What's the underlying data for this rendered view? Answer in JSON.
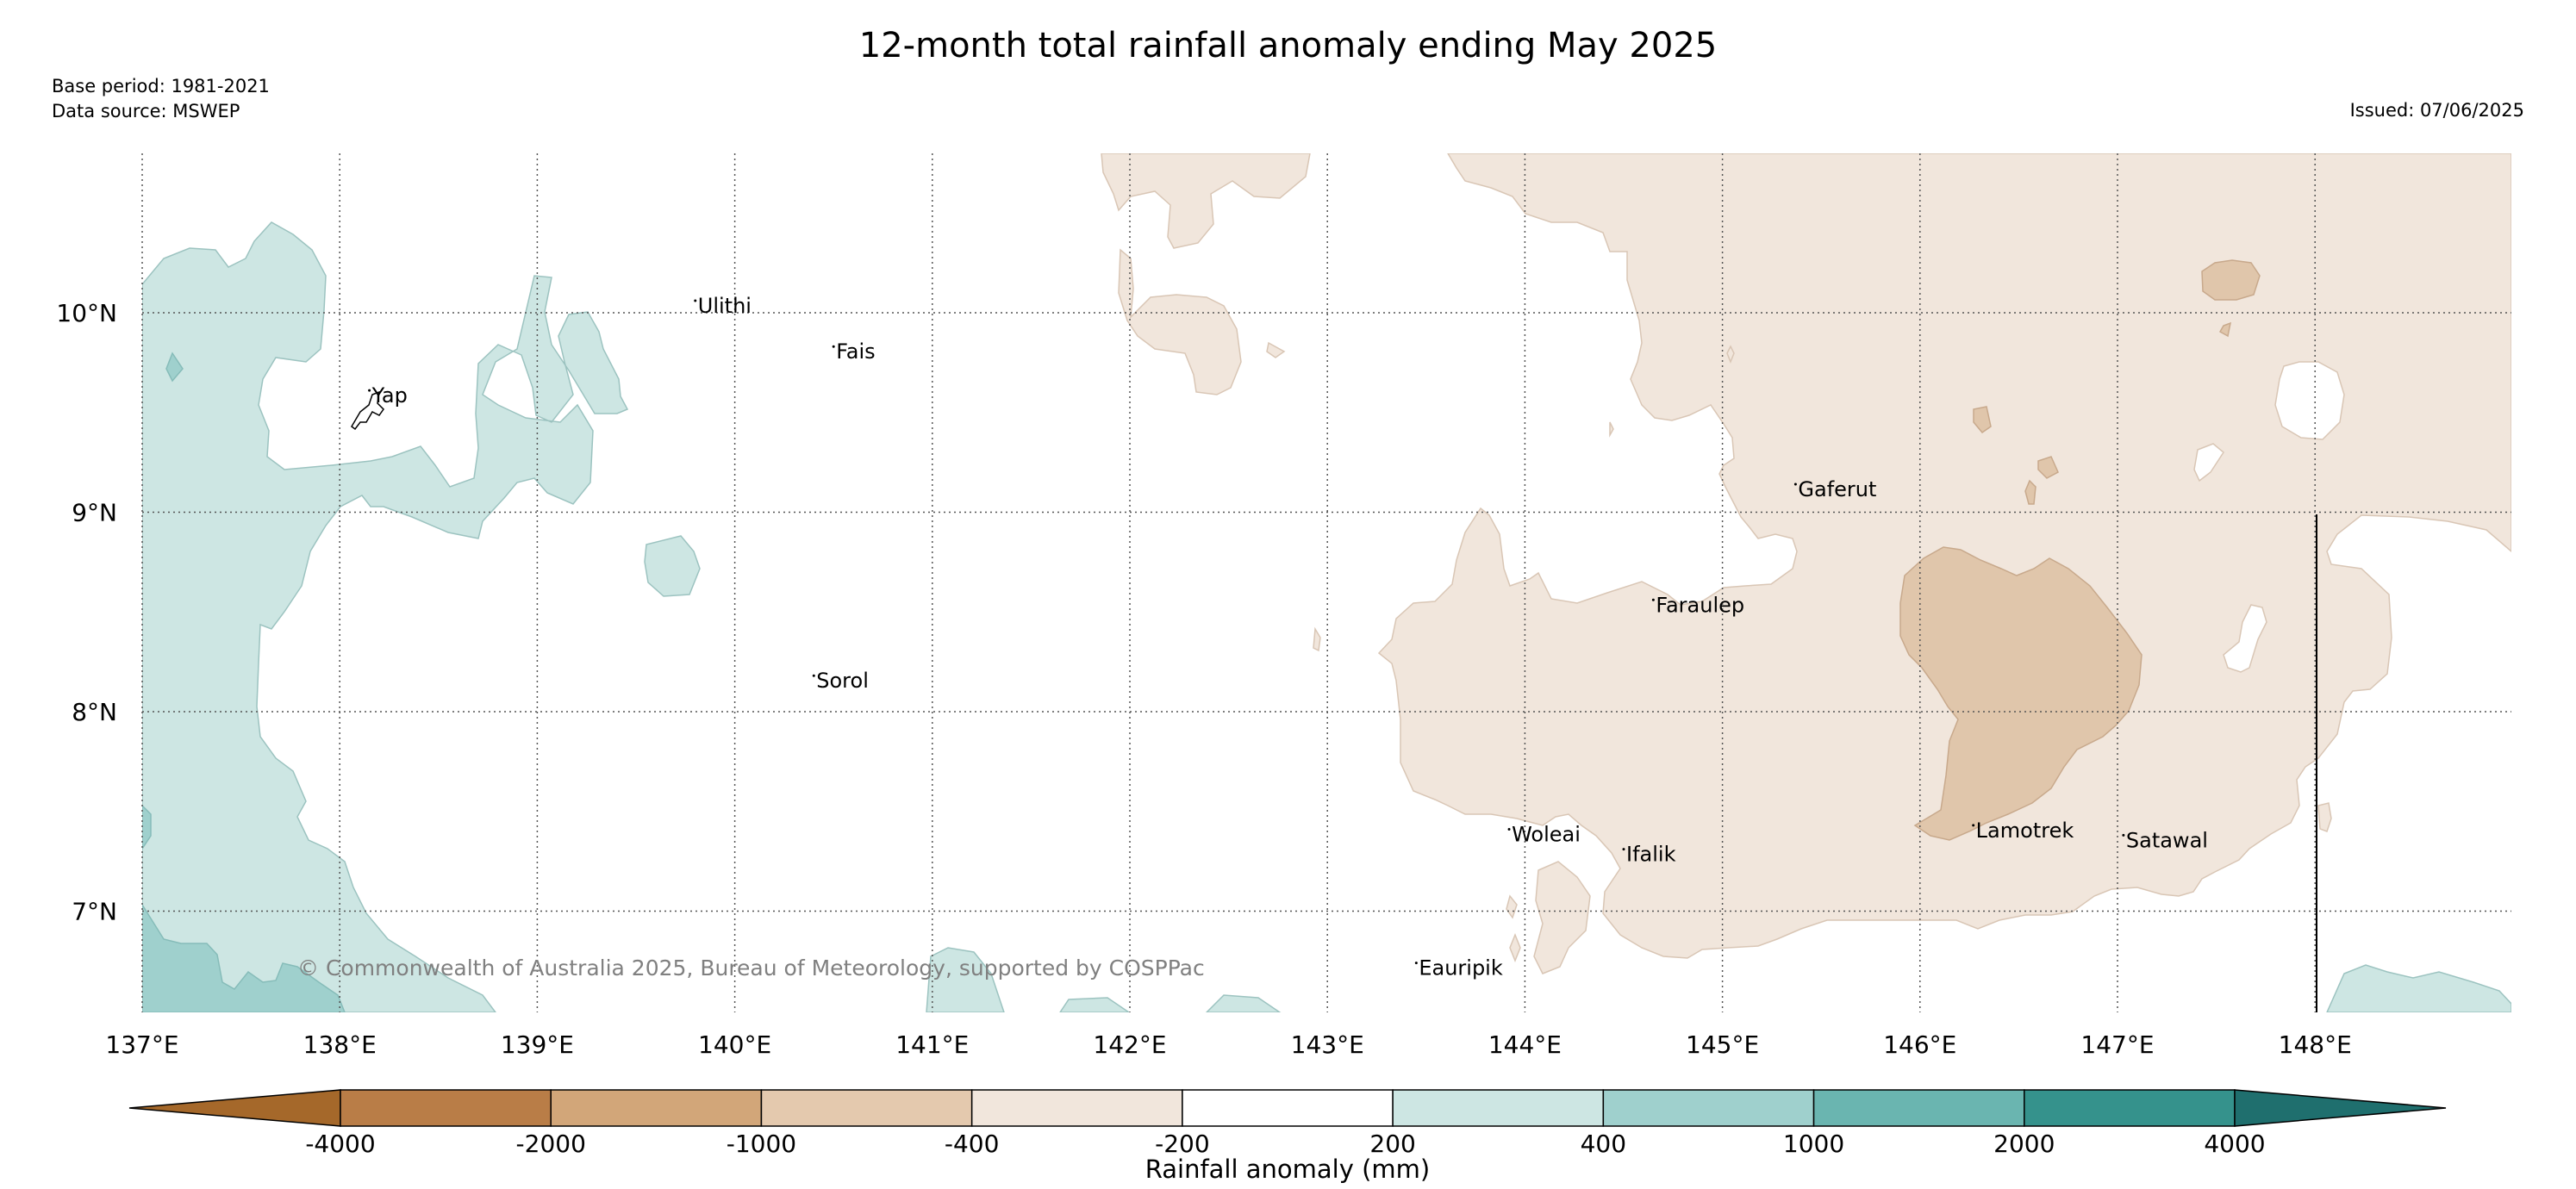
{
  "title": "12-month total rainfall anomaly ending May 2025",
  "base_period": "Base period: 1981-2021",
  "data_source": "Data source: MSWEP",
  "issued": "Issued: 07/06/2025",
  "copyright": "© Commonwealth of Australia 2025, Bureau of Meteorology, supported by COSPPac",
  "map": {
    "lon_ticks": [
      "137°E",
      "138°E",
      "139°E",
      "140°E",
      "141°E",
      "142°E",
      "143°E",
      "144°E",
      "145°E",
      "146°E",
      "147°E",
      "148°E"
    ],
    "lat_ticks": [
      "10°N",
      "9°N",
      "8°N",
      "7°N"
    ],
    "lon_range": [
      137,
      149
    ],
    "lat_range": [
      6.5,
      10.8
    ],
    "islands": [
      {
        "name": "Ulithi",
        "lon": 139.8,
        "lat": 10.0
      },
      {
        "name": "Fais",
        "lon": 140.5,
        "lat": 9.77
      },
      {
        "name": "Yap",
        "lon": 138.15,
        "lat": 9.55
      },
      {
        "name": "Sorol",
        "lon": 140.4,
        "lat": 8.12
      },
      {
        "name": "Gaferut",
        "lon": 145.37,
        "lat": 9.08
      },
      {
        "name": "Faraulep",
        "lon": 144.65,
        "lat": 8.5
      },
      {
        "name": "Woleai",
        "lon": 143.92,
        "lat": 7.35
      },
      {
        "name": "Ifalik",
        "lon": 144.5,
        "lat": 7.25
      },
      {
        "name": "Lamotrek",
        "lon": 146.27,
        "lat": 7.37
      },
      {
        "name": "Satawal",
        "lon": 147.03,
        "lat": 7.32
      },
      {
        "name": "Eauripik",
        "lon": 143.45,
        "lat": 6.68
      }
    ]
  },
  "colorbar": {
    "label": "Rainfall anomaly (mm)",
    "tick_labels": [
      "-4000",
      "-2000",
      "-1000",
      "-400",
      "-200",
      "200",
      "400",
      "1000",
      "2000",
      "4000"
    ],
    "colors": [
      "#a5682a",
      "#b97d47",
      "#d2a679",
      "#e4c9ae",
      "#f1e6dc",
      "#ffffff",
      "#cde6e3",
      "#9fd0cd",
      "#6ab5b0",
      "#35928c",
      "#1f6f6e"
    ]
  }
}
